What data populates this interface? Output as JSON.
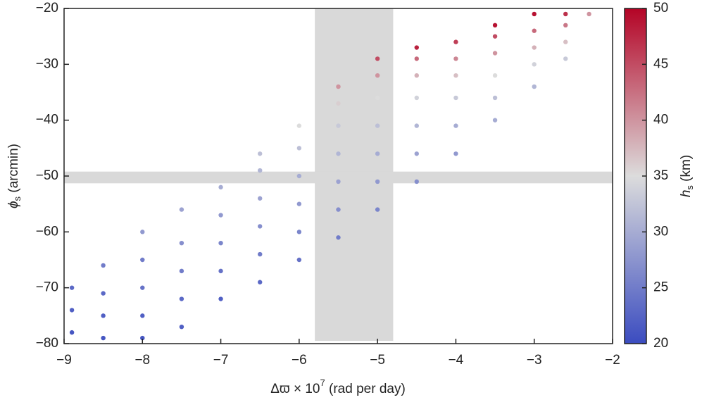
{
  "chart_data": {
    "type": "scatter",
    "xlabel": {
      "main": "Δϖ × 10",
      "sup": "7",
      "tail": " (rad per day)"
    },
    "ylabel": {
      "main": "ϕ",
      "sub": "s",
      "tail": " (arcmin)"
    },
    "colorbar_label": {
      "main": "h",
      "sub": "s",
      "tail": " (km)"
    },
    "xlim": [
      -9,
      -2
    ],
    "ylim": [
      -80,
      -20
    ],
    "xticks": [
      {
        "value": -9,
        "label": "−9"
      },
      {
        "value": -8,
        "label": "−8"
      },
      {
        "value": -7,
        "label": "−7"
      },
      {
        "value": -6,
        "label": "−6"
      },
      {
        "value": -5,
        "label": "−5"
      },
      {
        "value": -4,
        "label": "−4"
      },
      {
        "value": -3,
        "label": "−3"
      },
      {
        "value": -2,
        "label": "−2"
      }
    ],
    "yticks": [
      {
        "value": -80,
        "label": "−80"
      },
      {
        "value": -70,
        "label": "−70"
      },
      {
        "value": -60,
        "label": "−60"
      },
      {
        "value": -50,
        "label": "−50"
      },
      {
        "value": -40,
        "label": "−40"
      },
      {
        "value": -30,
        "label": "−30"
      },
      {
        "value": -20,
        "label": "−20"
      }
    ],
    "clim": [
      20,
      50
    ],
    "cticks": [
      20,
      25,
      30,
      35,
      40,
      45,
      50
    ],
    "colormap": [
      "#3b4cc0",
      "#dcdcdc",
      "#b40426"
    ],
    "band_color": "#d9d9d9",
    "bands": [
      {
        "x": [
          -5.8,
          -4.8
        ],
        "y": [
          -79.5,
          -20
        ]
      },
      {
        "x": [
          -9,
          -2
        ],
        "y": [
          -51.3,
          -49.2
        ]
      }
    ],
    "x": [
      -8.9,
      -8.9,
      -8.9,
      -8.5,
      -8.5,
      -8.5,
      -8.5,
      -8,
      -8,
      -8,
      -8,
      -8,
      -7.5,
      -7.5,
      -7.5,
      -7.5,
      -7.5,
      -7,
      -7,
      -7,
      -7,
      -7,
      -6.5,
      -6.5,
      -6.5,
      -6.5,
      -6.5,
      -6.5,
      -6,
      -6,
      -6,
      -6,
      -6,
      -6,
      -5.5,
      -5.5,
      -5.5,
      -5.5,
      -5.5,
      -5.5,
      -5.5,
      -5,
      -5,
      -5,
      -5,
      -5,
      -5,
      -5,
      -4.5,
      -4.5,
      -4.5,
      -4.5,
      -4.5,
      -4.5,
      -4.5,
      -4,
      -4,
      -4,
      -4,
      -4,
      -4,
      -3.5,
      -3.5,
      -3.5,
      -3.5,
      -3.5,
      -3.5,
      -3,
      -3,
      -3,
      -3,
      -3,
      -2.6,
      -2.6,
      -2.6,
      -2.6,
      -2.3
    ],
    "values": [
      -78,
      -74,
      -70,
      -79,
      -75,
      -71,
      -66,
      -79,
      -75,
      -70,
      -65,
      -60,
      -77,
      -72,
      -67,
      -62,
      -56,
      -72,
      -67,
      -62,
      -57,
      -52,
      -69,
      -64,
      -59,
      -54,
      -49,
      -46,
      -65,
      -60,
      -55,
      -50,
      -45,
      -41,
      -61,
      -56,
      -51,
      -46,
      -41,
      -37,
      -34,
      -56,
      -51,
      -46,
      -41,
      -36,
      -32,
      -29,
      -51,
      -46,
      -41,
      -36,
      -32,
      -29,
      -27,
      -46,
      -41,
      -36,
      -32,
      -29,
      -26,
      -40,
      -36,
      -32,
      -28,
      -25,
      -23,
      -34,
      -30,
      -27,
      -24,
      -21,
      -29,
      -26,
      -23,
      -21,
      -21
    ],
    "h": [
      21,
      22,
      23,
      21,
      22,
      23,
      25,
      21,
      22,
      24,
      25,
      28,
      22,
      23,
      25,
      27,
      29,
      22,
      24,
      26,
      28,
      30,
      23,
      25,
      27,
      29,
      31,
      32,
      24,
      26,
      28,
      30,
      32,
      35,
      25,
      27,
      29,
      31,
      33,
      36,
      40,
      26,
      28,
      30,
      32,
      35,
      40,
      45,
      27,
      29,
      31,
      34,
      38,
      43,
      48,
      28,
      30,
      33,
      37,
      41,
      46,
      30,
      32,
      35,
      40,
      45,
      49,
      31,
      34,
      38,
      43,
      49,
      33,
      37,
      42,
      47,
      40
    ]
  }
}
